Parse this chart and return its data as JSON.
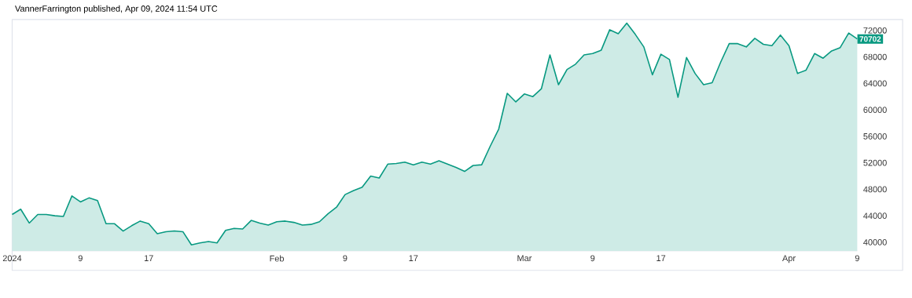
{
  "chart_data": {
    "type": "area",
    "color": "#089981",
    "annotations": [
      "VannerFarrington published, Apr 09, 2024 11:54 UTC",
      {
        "text": "70702",
        "x": "2024-04-09",
        "y": 70702
      }
    ],
    "x": [
      "2024-01-01",
      "2024-01-02",
      "2024-01-03",
      "2024-01-04",
      "2024-01-05",
      "2024-01-06",
      "2024-01-07",
      "2024-01-08",
      "2024-01-09",
      "2024-01-10",
      "2024-01-11",
      "2024-01-12",
      "2024-01-13",
      "2024-01-14",
      "2024-01-15",
      "2024-01-16",
      "2024-01-17",
      "2024-01-18",
      "2024-01-19",
      "2024-01-20",
      "2024-01-21",
      "2024-01-22",
      "2024-01-23",
      "2024-01-24",
      "2024-01-25",
      "2024-01-26",
      "2024-01-27",
      "2024-01-28",
      "2024-01-29",
      "2024-01-30",
      "2024-01-31",
      "2024-02-01",
      "2024-02-02",
      "2024-02-03",
      "2024-02-04",
      "2024-02-05",
      "2024-02-06",
      "2024-02-07",
      "2024-02-08",
      "2024-02-09",
      "2024-02-10",
      "2024-02-11",
      "2024-02-12",
      "2024-02-13",
      "2024-02-14",
      "2024-02-15",
      "2024-02-16",
      "2024-02-17",
      "2024-02-18",
      "2024-02-19",
      "2024-02-20",
      "2024-02-21",
      "2024-02-22",
      "2024-02-23",
      "2024-02-24",
      "2024-02-25",
      "2024-02-26",
      "2024-02-27",
      "2024-02-28",
      "2024-02-29",
      "2024-03-01",
      "2024-03-02",
      "2024-03-03",
      "2024-03-04",
      "2024-03-05",
      "2024-03-06",
      "2024-03-07",
      "2024-03-08",
      "2024-03-09",
      "2024-03-10",
      "2024-03-11",
      "2024-03-12",
      "2024-03-13",
      "2024-03-14",
      "2024-03-15",
      "2024-03-16",
      "2024-03-17",
      "2024-03-18",
      "2024-03-19",
      "2024-03-20",
      "2024-03-21",
      "2024-03-22",
      "2024-03-23",
      "2024-03-24",
      "2024-03-25",
      "2024-03-26",
      "2024-03-27",
      "2024-03-28",
      "2024-03-29",
      "2024-03-30",
      "2024-03-31",
      "2024-04-01",
      "2024-04-02",
      "2024-04-03",
      "2024-04-04",
      "2024-04-05",
      "2024-04-06",
      "2024-04-07",
      "2024-04-08",
      "2024-04-09"
    ],
    "values": [
      44200,
      45000,
      42900,
      44200,
      44200,
      44000,
      43900,
      47000,
      46100,
      46700,
      46300,
      42800,
      42800,
      41700,
      42500,
      43200,
      42800,
      41300,
      41600,
      41700,
      41600,
      39600,
      39900,
      40100,
      39900,
      41800,
      42100,
      42000,
      43300,
      42900,
      42600,
      43100,
      43200,
      43000,
      42600,
      42700,
      43100,
      44300,
      45300,
      47200,
      47800,
      48300,
      50000,
      49700,
      51800,
      51900,
      52100,
      51700,
      52100,
      51800,
      52300,
      51800,
      51300,
      50700,
      51600,
      51700,
      54500,
      57100,
      62500,
      61200,
      62400,
      62000,
      63200,
      68300,
      63800,
      66100,
      66900,
      68300,
      68500,
      69000,
      72100,
      71500,
      73100,
      71400,
      69500,
      65300,
      68400,
      67600,
      61900,
      67900,
      65500,
      63800,
      64100,
      67200,
      70000,
      70000,
      69500,
      70800,
      69900,
      69700,
      71300,
      69700,
      65500,
      66000,
      68500,
      67800,
      68900,
      69400,
      71600,
      70702
    ],
    "xlim": [
      "2024-01-01",
      "2024-04-09"
    ],
    "ylim": [
      38700,
      73650
    ],
    "xticks": [
      {
        "value": "2024-01-01",
        "label": "2024"
      },
      {
        "value": "2024-01-09",
        "label": "9"
      },
      {
        "value": "2024-01-17",
        "label": "17"
      },
      {
        "value": "2024-02-01",
        "label": "Feb"
      },
      {
        "value": "2024-02-09",
        "label": "9"
      },
      {
        "value": "2024-02-17",
        "label": "17"
      },
      {
        "value": "2024-03-01",
        "label": "Mar"
      },
      {
        "value": "2024-03-09",
        "label": "9"
      },
      {
        "value": "2024-03-17",
        "label": "17"
      },
      {
        "value": "2024-04-01",
        "label": "Apr"
      },
      {
        "value": "2024-04-09",
        "label": "9"
      }
    ],
    "yticks": [
      40000,
      44000,
      48000,
      52000,
      56000,
      60000,
      64000,
      68000,
      72000
    ]
  }
}
